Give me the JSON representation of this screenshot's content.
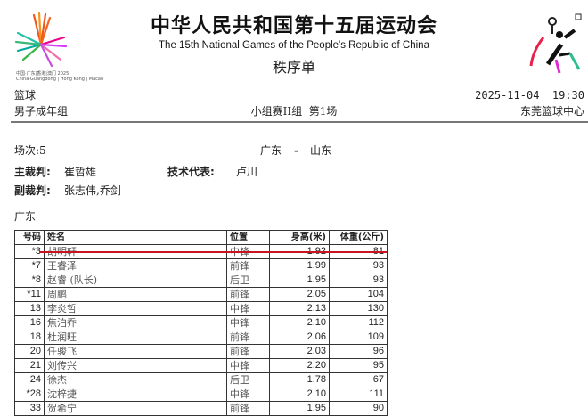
{
  "header": {
    "title": "中华人民共和国第十五届运动会",
    "subtitle": "The 15th National Games of the People's Republic of China",
    "doc_type": "秩序单",
    "logo_text": "中国·广东|香港|澳门 2025",
    "logo_subtext": "China·Guangdong | Hong Kong | Macao"
  },
  "meta": {
    "sport": "篮球",
    "datetime": "2025-11-04  19:30",
    "group": "男子成年组",
    "round": "小组赛II组  第1场",
    "venue": "东莞篮球中心"
  },
  "match": {
    "label": "场次:5",
    "home": "广东",
    "sep": "-",
    "away": "山东",
    "referee_label": "主裁判:",
    "referee": "崔哲雄",
    "tech_label": "技术代表:",
    "tech": "卢川",
    "assistant_label": "副裁判:",
    "assistants": "张志伟,乔剑"
  },
  "team": "广东",
  "table": {
    "headers": [
      "号码",
      "姓名",
      "位置",
      "身高(米)",
      "体重(公斤)"
    ],
    "rows": [
      [
        "*3",
        "胡明轩",
        "中锋",
        "1.92",
        "81"
      ],
      [
        "*7",
        "王睿泽",
        "前锋",
        "1.99",
        "93"
      ],
      [
        "*8",
        "赵睿 (队长)",
        "后卫",
        "1.95",
        "93"
      ],
      [
        "*11",
        "周鹏",
        "前锋",
        "2.05",
        "104"
      ],
      [
        "13",
        "李炎哲",
        "中锋",
        "2.13",
        "130"
      ],
      [
        "16",
        "焦泊乔",
        "中锋",
        "2.10",
        "112"
      ],
      [
        "18",
        "杜润旺",
        "前锋",
        "2.06",
        "109"
      ],
      [
        "20",
        "任骏飞",
        "前锋",
        "2.03",
        "96"
      ],
      [
        "21",
        "刘传兴",
        "中锋",
        "2.20",
        "95"
      ],
      [
        "24",
        "徐杰",
        "后卫",
        "1.78",
        "67"
      ],
      [
        "*28",
        "沈梓捷",
        "中锋",
        "2.10",
        "111"
      ],
      [
        "33",
        "贺希宁",
        "前锋",
        "1.95",
        "90"
      ]
    ]
  },
  "colors": {
    "highlight_line": "#c8141e"
  }
}
